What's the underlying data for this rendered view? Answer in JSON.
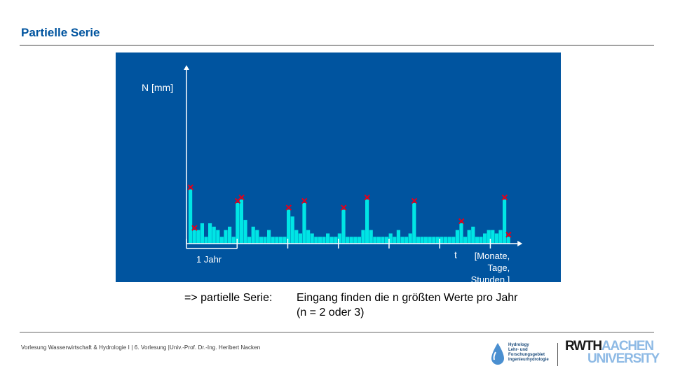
{
  "page": {
    "title": "Partielle Serie"
  },
  "chart_data": {
    "type": "bar",
    "ylabel": "N [mm]",
    "xlabel": "t",
    "x_unit_label": "[Monate,\n Tage,\n Stunden,]",
    "period_label": "1 Jahr",
    "ylim": [
      0,
      10
    ],
    "values": [
      8,
      2,
      2,
      3,
      1,
      3,
      2.5,
      2,
      1,
      2,
      2.5,
      1,
      6,
      6.5,
      3.5,
      1,
      2.5,
      2,
      1,
      1,
      2,
      1,
      1,
      1,
      1,
      5,
      4,
      2,
      1.5,
      6,
      2,
      1.5,
      1,
      1,
      1,
      1.5,
      1,
      1,
      1.5,
      5,
      1,
      1,
      1,
      1,
      2,
      6.5,
      2,
      1,
      1,
      1,
      1,
      1.5,
      1,
      2,
      1,
      1,
      1.5,
      6,
      1,
      1,
      1,
      1,
      1,
      1,
      1,
      1,
      1,
      1,
      2,
      3,
      1,
      2,
      2.5,
      1,
      1,
      1.5,
      2,
      2,
      1.5,
      2,
      6.5,
      1
    ],
    "marker_indices": [
      0,
      1,
      12,
      13,
      25,
      29,
      39,
      45,
      57,
      69,
      80,
      81
    ],
    "year_tick_indices": [
      0,
      12,
      24,
      36,
      48,
      60,
      72
    ],
    "colors": {
      "background": "#00549f",
      "bars": "#00e5e5",
      "markers": "#e2001a",
      "axis": "#ffffff"
    }
  },
  "conclusion": {
    "lead": "=> partielle Serie:",
    "text": "Eingang finden die n größten Werte pro Jahr\n(n = 2 oder 3)"
  },
  "footer": {
    "text": "Vorlesung Wasserwirtschaft & Hydrologie I | 6. Vorlesung |Univ.-Prof. Dr.-Ing. Heribert Nacken",
    "institute_text": "Hydrology\nLehr- und\nForschungsgebiet\nIngenieurhydrologie",
    "logo_rwth": "RWTH",
    "logo_aachen": "AACHEN",
    "logo_university": "UNIVERSITY"
  }
}
